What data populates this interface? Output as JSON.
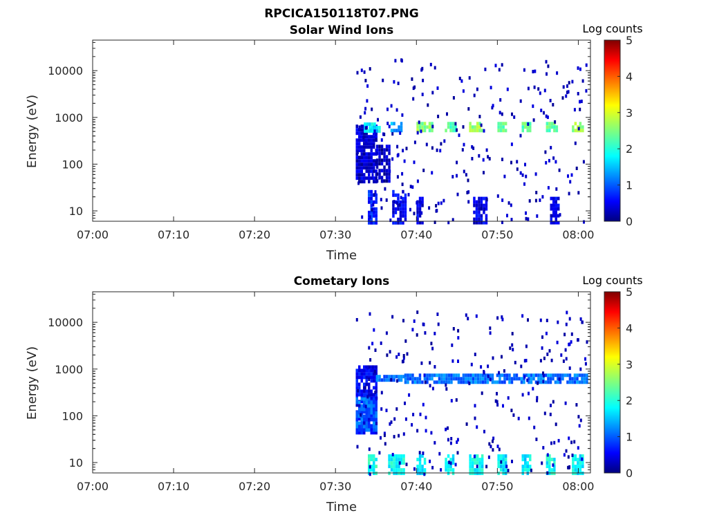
{
  "figure": {
    "file_title": "RPCICA150118T07.PNG"
  },
  "chart_data": [
    {
      "type": "heatmap",
      "title": "Solar Wind Ions",
      "xlabel": "Time",
      "ylabel": "Energy (eV)",
      "x_tick_labels": [
        "07:00",
        "07:10",
        "07:20",
        "07:30",
        "07:40",
        "07:50",
        "08:00"
      ],
      "x_range_minutes": [
        0,
        61.5
      ],
      "y_scale": "log",
      "y_tick_labels": [
        "10",
        "100",
        "1000",
        "10000"
      ],
      "y_tick_values": [
        10,
        100,
        1000,
        10000
      ],
      "y_range": [
        6,
        45000
      ],
      "colorbar": {
        "label": "Log counts",
        "range": [
          0,
          5
        ],
        "ticks": [
          "0",
          "1",
          "2",
          "3",
          "4",
          "5"
        ],
        "colormap": "jet"
      },
      "data_start_minute": 32.5,
      "features": [
        {
          "t": [
            32.5,
            35.0
          ],
          "e": [
            40,
            700
          ],
          "log_counts": 0.4
        },
        {
          "t": [
            33.5,
            35.5
          ],
          "e": [
            520,
            780
          ],
          "log_counts": 1.8
        },
        {
          "t": [
            35.0,
            36.5
          ],
          "e": [
            45,
            260
          ],
          "log_counts": 0.3
        },
        {
          "t": [
            36.8,
            38.0
          ],
          "e": [
            550,
            800
          ],
          "log_counts": 1.4
        },
        {
          "t": [
            40.0,
            42.0
          ],
          "e": [
            520,
            800
          ],
          "log_counts": 2.6
        },
        {
          "t": [
            43.5,
            44.8
          ],
          "e": [
            520,
            800
          ],
          "log_counts": 2.2
        },
        {
          "t": [
            46.5,
            48.0
          ],
          "e": [
            520,
            800
          ],
          "log_counts": 2.6
        },
        {
          "t": [
            50.0,
            51.0
          ],
          "e": [
            520,
            800
          ],
          "log_counts": 2.4
        },
        {
          "t": [
            53.0,
            54.0
          ],
          "e": [
            520,
            800
          ],
          "log_counts": 2.3
        },
        {
          "t": [
            56.0,
            57.2
          ],
          "e": [
            520,
            800
          ],
          "log_counts": 2.3
        },
        {
          "t": [
            59.2,
            60.5
          ],
          "e": [
            520,
            800
          ],
          "log_counts": 2.6
        },
        {
          "t": [
            34.0,
            35.0
          ],
          "e": [
            6,
            28
          ],
          "log_counts": 0.8
        },
        {
          "t": [
            37.0,
            38.5
          ],
          "e": [
            6,
            28
          ],
          "log_counts": 0.6
        },
        {
          "t": [
            40.0,
            40.8
          ],
          "e": [
            6,
            20
          ],
          "log_counts": 0.5
        },
        {
          "t": [
            47.0,
            48.5
          ],
          "e": [
            6,
            20
          ],
          "log_counts": 0.5
        },
        {
          "t": [
            56.5,
            57.5
          ],
          "e": [
            6,
            20
          ],
          "log_counts": 0.5
        }
      ]
    },
    {
      "type": "heatmap",
      "title": "Cometary Ions",
      "xlabel": "Time",
      "ylabel": "Energy (eV)",
      "x_tick_labels": [
        "07:00",
        "07:10",
        "07:20",
        "07:30",
        "07:40",
        "07:50",
        "08:00"
      ],
      "x_range_minutes": [
        0,
        61.5
      ],
      "y_scale": "log",
      "y_tick_labels": [
        "10",
        "100",
        "1000",
        "10000"
      ],
      "y_tick_values": [
        10,
        100,
        1000,
        10000
      ],
      "y_range": [
        6,
        45000
      ],
      "colorbar": {
        "label": "Log counts",
        "range": [
          0,
          5
        ],
        "ticks": [
          "0",
          "1",
          "2",
          "3",
          "4",
          "5"
        ],
        "colormap": "jet"
      },
      "data_start_minute": 32.5,
      "features": [
        {
          "t": [
            32.5,
            35.0
          ],
          "e": [
            40,
            1200
          ],
          "log_counts": 0.6
        },
        {
          "t": [
            32.5,
            35.0
          ],
          "e": [
            50,
            250
          ],
          "log_counts": 1.1
        },
        {
          "t": [
            34.0,
            35.0
          ],
          "e": [
            6,
            15
          ],
          "log_counts": 2.0
        },
        {
          "t": [
            36.5,
            38.5
          ],
          "e": [
            6,
            15
          ],
          "log_counts": 1.9
        },
        {
          "t": [
            35.0,
            38.5
          ],
          "e": [
            550,
            750
          ],
          "log_counts": 1.1
        },
        {
          "t": [
            40.0,
            41.0
          ],
          "e": [
            6,
            15
          ],
          "log_counts": 1.8
        },
        {
          "t": [
            43.5,
            44.5
          ],
          "e": [
            6,
            15
          ],
          "log_counts": 1.8
        },
        {
          "t": [
            46.5,
            48.0
          ],
          "e": [
            6,
            15
          ],
          "log_counts": 1.9
        },
        {
          "t": [
            50.0,
            51.0
          ],
          "e": [
            6,
            15
          ],
          "log_counts": 1.8
        },
        {
          "t": [
            53.0,
            54.0
          ],
          "e": [
            6,
            15
          ],
          "log_counts": 1.8
        },
        {
          "t": [
            56.0,
            57.0
          ],
          "e": [
            6,
            15
          ],
          "log_counts": 1.9
        },
        {
          "t": [
            59.2,
            60.5
          ],
          "e": [
            6,
            15
          ],
          "log_counts": 1.8
        },
        {
          "t": [
            38.5,
            61.0
          ],
          "e": [
            550,
            800
          ],
          "log_counts": 1.2
        }
      ]
    }
  ]
}
